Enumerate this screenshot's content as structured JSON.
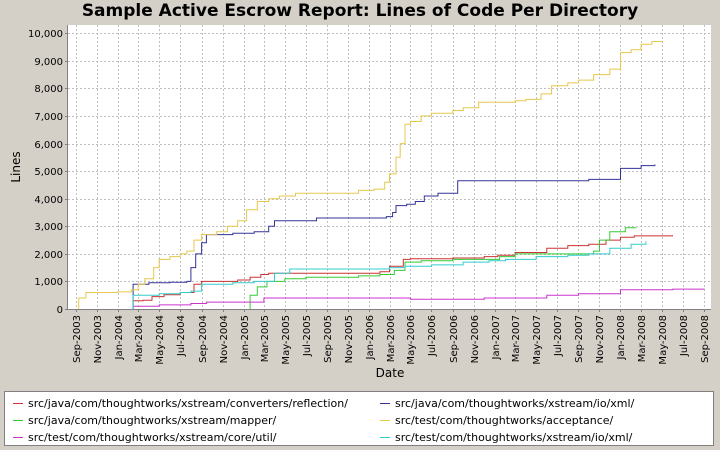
{
  "chart_data": {
    "type": "line",
    "title": "Sample Active Escrow Report: Lines of Code Per Directory",
    "xlabel": "Date",
    "ylabel": "Lines",
    "ylim": [
      0,
      10300
    ],
    "xlim": [
      "2003-08-10",
      "2008-09-20"
    ],
    "grid": true,
    "legend_placement": "bottom",
    "y_ticks": [
      0,
      1000,
      2000,
      3000,
      4000,
      5000,
      6000,
      7000,
      8000,
      9000,
      10000
    ],
    "y_tick_labels": [
      "0",
      "1,000",
      "2,000",
      "3,000",
      "4,000",
      "5,000",
      "6,000",
      "7,000",
      "8,000",
      "9,000",
      "10,000"
    ],
    "x_ticks": [
      "2003-09-01",
      "2003-11-01",
      "2004-01-01",
      "2004-03-01",
      "2004-05-01",
      "2004-07-01",
      "2004-09-01",
      "2004-11-01",
      "2005-01-01",
      "2005-03-01",
      "2005-05-01",
      "2005-07-01",
      "2005-09-01",
      "2005-11-01",
      "2006-01-01",
      "2006-03-01",
      "2006-05-01",
      "2006-07-01",
      "2006-09-01",
      "2006-11-01",
      "2007-01-01",
      "2007-03-01",
      "2007-05-01",
      "2007-07-01",
      "2007-09-01",
      "2007-11-01",
      "2008-01-01",
      "2008-03-01",
      "2008-05-01",
      "2008-07-01",
      "2008-09-01"
    ],
    "x_tick_labels": [
      "Sep-2003",
      "Nov-2003",
      "Jan-2004",
      "Mar-2004",
      "May-2004",
      "Jul-2004",
      "Sep-2004",
      "Nov-2004",
      "Jan-2005",
      "Mar-2005",
      "May-2005",
      "Jul-2005",
      "Sep-2005",
      "Nov-2005",
      "Jan-2006",
      "Mar-2006",
      "May-2006",
      "Jul-2006",
      "Sep-2006",
      "Nov-2006",
      "Jan-2007",
      "Mar-2007",
      "May-2007",
      "Jul-2007",
      "Sep-2007",
      "Nov-2007",
      "Jan-2008",
      "Mar-2008",
      "May-2008",
      "Jul-2008",
      "Sep-2008"
    ],
    "series": [
      {
        "name": "src/java/com/thoughtworks/xstream/converters/reflection/",
        "color": "#cc3333",
        "points": [
          [
            "2004-02-15",
            0
          ],
          [
            "2004-02-15",
            300
          ],
          [
            "2004-03-15",
            320
          ],
          [
            "2004-04-10",
            450
          ],
          [
            "2004-05-15",
            520
          ],
          [
            "2004-07-01",
            600
          ],
          [
            "2004-08-10",
            900
          ],
          [
            "2004-09-01",
            1000
          ],
          [
            "2004-12-15",
            1050
          ],
          [
            "2005-01-20",
            1150
          ],
          [
            "2005-02-20",
            1250
          ],
          [
            "2005-03-15",
            1300
          ],
          [
            "2005-06-01",
            1300
          ],
          [
            "2005-08-01",
            1300
          ],
          [
            "2005-12-15",
            1300
          ],
          [
            "2006-02-01",
            1350
          ],
          [
            "2006-03-01",
            1550
          ],
          [
            "2006-04-10",
            1800
          ],
          [
            "2006-05-01",
            1820
          ],
          [
            "2006-09-01",
            1850
          ],
          [
            "2006-12-01",
            1900
          ],
          [
            "2007-01-10",
            1950
          ],
          [
            "2007-03-01",
            2050
          ],
          [
            "2007-06-01",
            2200
          ],
          [
            "2007-08-01",
            2300
          ],
          [
            "2007-10-01",
            2350
          ],
          [
            "2007-11-20",
            2500
          ],
          [
            "2008-01-01",
            2600
          ],
          [
            "2008-02-10",
            2650
          ],
          [
            "2008-05-31",
            2680
          ]
        ]
      },
      {
        "name": "src/java/com/thoughtworks/xstream/io/xml/",
        "color": "#33339a",
        "points": [
          [
            "2004-02-15",
            0
          ],
          [
            "2004-02-15",
            900
          ],
          [
            "2004-04-01",
            950
          ],
          [
            "2004-06-01",
            970
          ],
          [
            "2004-07-20",
            1000
          ],
          [
            "2004-08-01",
            1500
          ],
          [
            "2004-08-15",
            2000
          ],
          [
            "2004-09-01",
            2400
          ],
          [
            "2004-09-15",
            2700
          ],
          [
            "2004-12-01",
            2750
          ],
          [
            "2005-02-01",
            2800
          ],
          [
            "2005-03-15",
            3000
          ],
          [
            "2005-04-01",
            3200
          ],
          [
            "2005-08-01",
            3300
          ],
          [
            "2005-12-01",
            3300
          ],
          [
            "2006-01-15",
            3300
          ],
          [
            "2006-02-20",
            3350
          ],
          [
            "2006-03-10",
            3500
          ],
          [
            "2006-03-20",
            3750
          ],
          [
            "2006-04-20",
            3800
          ],
          [
            "2006-05-15",
            3900
          ],
          [
            "2006-06-10",
            4100
          ],
          [
            "2006-07-20",
            4200
          ],
          [
            "2006-09-15",
            4650
          ],
          [
            "2007-01-01",
            4650
          ],
          [
            "2007-06-01",
            4650
          ],
          [
            "2007-09-01",
            4650
          ],
          [
            "2007-10-01",
            4700
          ],
          [
            "2007-12-01",
            4700
          ],
          [
            "2008-01-01",
            5100
          ],
          [
            "2008-03-01",
            5200
          ],
          [
            "2008-04-10",
            5240
          ]
        ]
      },
      {
        "name": "src/java/com/thoughtworks/xstream/mapper/",
        "color": "#33cc33",
        "points": [
          [
            "2005-01-20",
            0
          ],
          [
            "2005-01-20",
            500
          ],
          [
            "2005-02-10",
            800
          ],
          [
            "2005-03-10",
            1000
          ],
          [
            "2005-05-01",
            1100
          ],
          [
            "2005-07-01",
            1150
          ],
          [
            "2005-10-01",
            1150
          ],
          [
            "2005-12-01",
            1200
          ],
          [
            "2006-02-01",
            1250
          ],
          [
            "2006-03-15",
            1400
          ],
          [
            "2006-04-15",
            1700
          ],
          [
            "2006-06-01",
            1750
          ],
          [
            "2006-09-01",
            1800
          ],
          [
            "2006-12-01",
            1800
          ],
          [
            "2007-01-15",
            1900
          ],
          [
            "2007-03-01",
            2000
          ],
          [
            "2007-06-01",
            2000
          ],
          [
            "2007-09-01",
            2000
          ],
          [
            "2007-10-15",
            2100
          ],
          [
            "2007-11-01",
            2500
          ],
          [
            "2007-12-01",
            2800
          ],
          [
            "2008-01-15",
            2950
          ],
          [
            "2008-02-15",
            2960
          ]
        ]
      },
      {
        "name": "src/test/com/thoughtworks/acceptance/",
        "color": "#e6c84d",
        "points": [
          [
            "2003-09-10",
            0
          ],
          [
            "2003-09-10",
            400
          ],
          [
            "2003-10-01",
            600
          ],
          [
            "2004-01-01",
            620
          ],
          [
            "2004-02-10",
            700
          ],
          [
            "2004-03-01",
            900
          ],
          [
            "2004-03-20",
            1100
          ],
          [
            "2004-04-15",
            1500
          ],
          [
            "2004-05-01",
            1800
          ],
          [
            "2004-06-01",
            1900
          ],
          [
            "2004-07-01",
            2000
          ],
          [
            "2004-07-20",
            2100
          ],
          [
            "2004-08-10",
            2500
          ],
          [
            "2004-09-01",
            2700
          ],
          [
            "2004-10-15",
            2800
          ],
          [
            "2004-11-15",
            3000
          ],
          [
            "2004-12-15",
            3200
          ],
          [
            "2005-01-10",
            3600
          ],
          [
            "2005-02-10",
            3900
          ],
          [
            "2005-03-15",
            4000
          ],
          [
            "2005-04-15",
            4100
          ],
          [
            "2005-06-01",
            4200
          ],
          [
            "2005-09-01",
            4200
          ],
          [
            "2005-12-01",
            4300
          ],
          [
            "2006-01-15",
            4350
          ],
          [
            "2006-02-15",
            4600
          ],
          [
            "2006-03-01",
            4900
          ],
          [
            "2006-03-20",
            5500
          ],
          [
            "2006-04-01",
            6000
          ],
          [
            "2006-04-15",
            6700
          ],
          [
            "2006-05-01",
            6800
          ],
          [
            "2006-06-01",
            7000
          ],
          [
            "2006-07-01",
            7100
          ],
          [
            "2006-09-01",
            7200
          ],
          [
            "2006-10-01",
            7300
          ],
          [
            "2006-11-15",
            7500
          ],
          [
            "2007-01-01",
            7500
          ],
          [
            "2007-03-01",
            7550
          ],
          [
            "2007-04-01",
            7600
          ],
          [
            "2007-05-15",
            7800
          ],
          [
            "2007-06-15",
            8100
          ],
          [
            "2007-08-01",
            8200
          ],
          [
            "2007-09-01",
            8300
          ],
          [
            "2007-10-15",
            8500
          ],
          [
            "2007-12-01",
            8700
          ],
          [
            "2008-01-01",
            9300
          ],
          [
            "2008-02-01",
            9400
          ],
          [
            "2008-03-01",
            9600
          ],
          [
            "2008-04-01",
            9700
          ],
          [
            "2008-05-01",
            9720
          ]
        ]
      },
      {
        "name": "src/test/com/thoughtworks/xstream/core/util/",
        "color": "#cc33cc",
        "points": [
          [
            "2004-02-15",
            0
          ],
          [
            "2004-02-15",
            100
          ],
          [
            "2004-05-01",
            150
          ],
          [
            "2004-08-01",
            200
          ],
          [
            "2004-09-15",
            250
          ],
          [
            "2005-01-15",
            250
          ],
          [
            "2005-03-01",
            400
          ],
          [
            "2005-07-01",
            400
          ],
          [
            "2006-01-01",
            400
          ],
          [
            "2006-05-01",
            350
          ],
          [
            "2006-09-01",
            350
          ],
          [
            "2006-12-01",
            400
          ],
          [
            "2007-03-01",
            400
          ],
          [
            "2007-06-01",
            500
          ],
          [
            "2007-09-01",
            550
          ],
          [
            "2008-01-01",
            700
          ],
          [
            "2008-04-01",
            700
          ],
          [
            "2008-06-01",
            720
          ],
          [
            "2008-08-31",
            740
          ]
        ]
      },
      {
        "name": "src/test/com/thoughtworks/xstream/io/xml/",
        "color": "#33cccc",
        "points": [
          [
            "2004-02-15",
            0
          ],
          [
            "2004-02-15",
            500
          ],
          [
            "2004-05-01",
            550
          ],
          [
            "2004-07-01",
            600
          ],
          [
            "2004-08-01",
            650
          ],
          [
            "2004-09-01",
            900
          ],
          [
            "2004-12-01",
            950
          ],
          [
            "2005-02-01",
            1000
          ],
          [
            "2005-04-01",
            1300
          ],
          [
            "2005-05-15",
            1450
          ],
          [
            "2005-09-01",
            1450
          ],
          [
            "2006-01-01",
            1450
          ],
          [
            "2006-03-01",
            1500
          ],
          [
            "2006-04-15",
            1550
          ],
          [
            "2006-07-01",
            1600
          ],
          [
            "2006-10-01",
            1700
          ],
          [
            "2006-12-15",
            1750
          ],
          [
            "2007-02-01",
            1800
          ],
          [
            "2007-05-01",
            1900
          ],
          [
            "2007-08-01",
            1950
          ],
          [
            "2007-10-01",
            2000
          ],
          [
            "2007-12-01",
            2200
          ],
          [
            "2008-02-01",
            2350
          ],
          [
            "2008-03-15",
            2450
          ]
        ]
      }
    ]
  }
}
